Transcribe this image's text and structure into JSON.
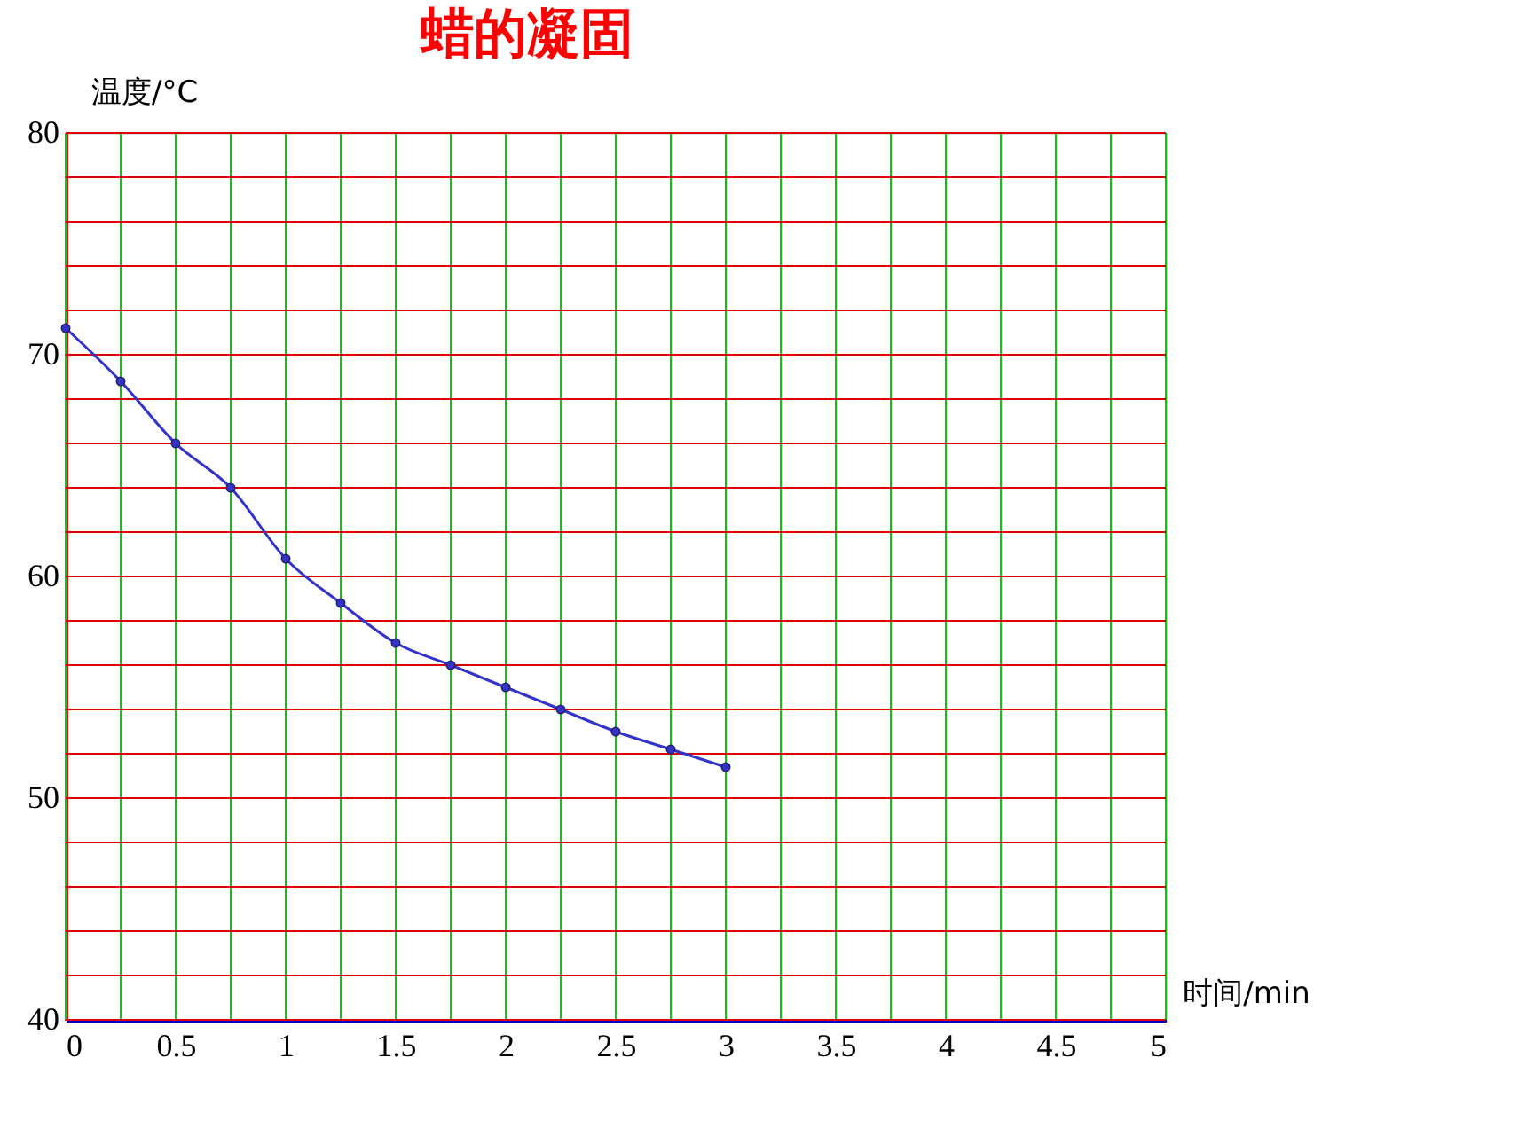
{
  "chart_data": {
    "type": "line",
    "title": "蜡的凝固",
    "xlabel": "时间/min",
    "ylabel": "温度/°C",
    "x": [
      0,
      0.25,
      0.5,
      0.75,
      1,
      1.25,
      1.5,
      1.75,
      2,
      2.25,
      2.5,
      2.75,
      3
    ],
    "series": [
      {
        "color": "#3333cc",
        "values": [
          71.2,
          68.8,
          66,
          64,
          60.8,
          58.8,
          57,
          56,
          55,
          54,
          53,
          52.2,
          51.4
        ]
      }
    ],
    "xlim": [
      0,
      5
    ],
    "xticks": [
      0,
      {
        "value": 0.25,
        "label": null
      },
      0.5,
      {
        "value": 0.75,
        "label": null
      },
      1,
      {
        "value": 1.25,
        "label": null
      },
      1.5,
      {
        "value": 1.75,
        "label": null
      },
      2,
      {
        "value": 2.25,
        "label": null
      },
      2.5,
      {
        "value": 2.75,
        "label": null
      },
      3,
      {
        "value": 3.25,
        "label": null
      },
      3.5,
      {
        "value": 3.75,
        "label": null
      },
      4,
      {
        "value": 4.25,
        "label": null
      },
      4.5,
      {
        "value": 4.75,
        "label": null
      },
      5
    ],
    "ylim": [
      40,
      80
    ],
    "yticks": [
      40,
      {
        "value": 42,
        "label": null
      },
      {
        "value": 44,
        "label": null
      },
      {
        "value": 46,
        "label": null
      },
      {
        "value": 48,
        "label": null
      },
      50,
      {
        "value": 52,
        "label": null
      },
      {
        "value": 54,
        "label": null
      },
      {
        "value": 56,
        "label": null
      },
      {
        "value": 58,
        "label": null
      },
      60,
      {
        "value": 62,
        "label": null
      },
      {
        "value": 64,
        "label": null
      },
      {
        "value": 66,
        "label": null
      },
      {
        "value": 68,
        "label": null
      },
      70,
      {
        "value": 72,
        "label": null
      },
      {
        "value": 74,
        "label": null
      },
      {
        "value": 76,
        "label": null
      },
      {
        "value": 78,
        "label": null
      },
      80
    ],
    "grid": true,
    "marker": "circle",
    "line_style": "solid"
  }
}
